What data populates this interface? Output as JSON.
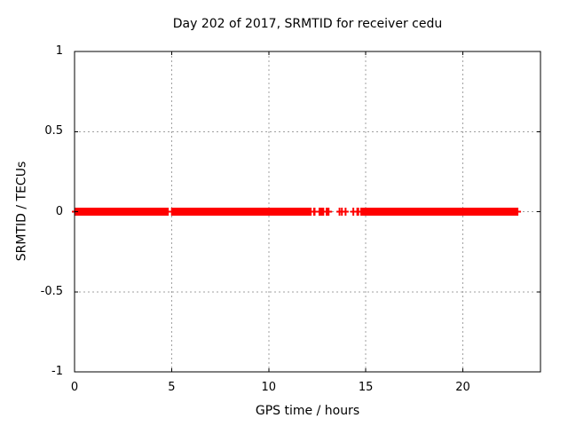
{
  "chart_data": {
    "type": "scatter",
    "title": "Day 202 of 2017, SRMTID for receiver cedu",
    "xlabel": "GPS time / hours",
    "ylabel": "SRMTID / TECUs",
    "xlim": [
      0,
      24
    ],
    "ylim": [
      -1,
      1
    ],
    "xticks": [
      {
        "value": 0,
        "label": "0"
      },
      {
        "value": 5,
        "label": "5"
      },
      {
        "value": 10,
        "label": "10"
      },
      {
        "value": 15,
        "label": "15"
      },
      {
        "value": 20,
        "label": "20"
      }
    ],
    "yticks": [
      {
        "value": -1,
        "label": "-1"
      },
      {
        "value": -0.5,
        "label": "-0.5"
      },
      {
        "value": 0,
        "label": "0"
      },
      {
        "value": 0.5,
        "label": "0.5"
      },
      {
        "value": 1,
        "label": "1"
      }
    ],
    "grid": true,
    "legend_position": "none",
    "marker": "plus",
    "series": [
      {
        "name": "SRMTID",
        "y_value": 0,
        "dense_segments_hours": [
          [
            0.0,
            4.85
          ],
          [
            4.97,
            12.21
          ],
          [
            12.29,
            12.41
          ],
          [
            12.57,
            12.86
          ],
          [
            12.94,
            13.13
          ],
          [
            14.52,
            14.66
          ],
          [
            14.72,
            22.86
          ]
        ],
        "sparse_points_hours": [
          13.65,
          13.77,
          13.96,
          14.36
        ]
      }
    ],
    "colors": {
      "data": "#ff0000",
      "grid": "#a0a0a0",
      "axis": "#000000",
      "background": "#ffffff",
      "text": "#000000"
    }
  }
}
